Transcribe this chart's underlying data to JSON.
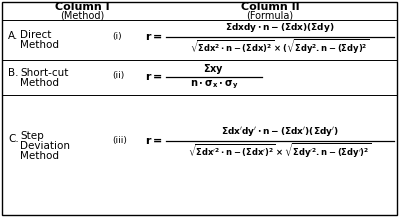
{
  "bg_color": "#ffffff",
  "border_color": "#000000",
  "col1_header": "Column I",
  "col1_subheader": "(Method)",
  "col2_header": "Column II",
  "col2_subheader": "(Formula)",
  "header_fontsize": 8,
  "body_fontsize": 7.5
}
